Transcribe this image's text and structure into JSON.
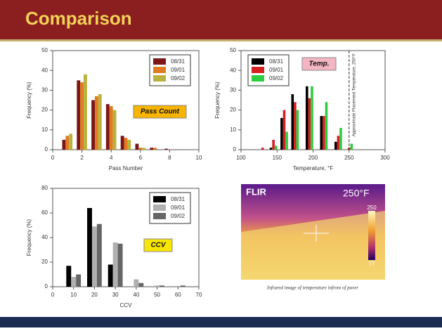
{
  "slide_title": "Comparison",
  "chart_data": [
    {
      "type": "bar",
      "annotation": "Pass Count",
      "xlabel": "Pass Number",
      "ylabel": "Frequency (%)",
      "x": [
        1,
        2,
        3,
        4,
        5,
        6,
        7,
        8
      ],
      "series": [
        {
          "name": "08/31",
          "color": "#7a1616",
          "values": [
            5,
            35,
            25,
            23,
            7,
            3,
            1,
            0.5
          ]
        },
        {
          "name": "09/01",
          "color": "#e07b22",
          "values": [
            7,
            34,
            27,
            22,
            6,
            1,
            1,
            0
          ]
        },
        {
          "name": "09/02",
          "color": "#b9b23f",
          "values": [
            8,
            38,
            28,
            20,
            5,
            1,
            0,
            0
          ]
        }
      ],
      "xlim": [
        0,
        10
      ],
      "xticks": [
        0,
        2,
        4,
        6,
        8,
        10
      ],
      "ylim": [
        0,
        50
      ],
      "yticks": [
        0,
        10,
        20,
        30,
        40,
        50
      ],
      "legend": "upper right"
    },
    {
      "type": "bar",
      "annotation": "Temp.",
      "xlabel": "Temperature, °F",
      "ylabel": "Frequency (%)",
      "x": [
        130,
        145,
        160,
        175,
        195,
        215,
        235,
        250
      ],
      "series": [
        {
          "name": "08/31",
          "color": "#000000",
          "values": [
            0,
            1,
            16,
            28,
            32,
            17,
            4,
            0
          ]
        },
        {
          "name": "09/01",
          "color": "#d42020",
          "values": [
            1,
            5,
            20,
            24,
            26,
            17,
            7,
            1
          ]
        },
        {
          "name": "09/02",
          "color": "#2ecc40",
          "values": [
            0,
            2,
            9,
            20,
            32,
            24,
            11,
            3
          ]
        }
      ],
      "reference_line": {
        "x": 250,
        "label": "Approximate Placement Temperature, 250°F"
      },
      "xlim": [
        100,
        300
      ],
      "xticks": [
        100,
        150,
        200,
        250,
        300
      ],
      "ylim": [
        0,
        50
      ],
      "yticks": [
        0,
        10,
        20,
        30,
        40,
        50
      ],
      "legend": "upper left"
    },
    {
      "type": "bar",
      "annotation": "CCV",
      "xlabel": "CCV",
      "ylabel": "Frequency (%)",
      "x": [
        10,
        20,
        30,
        40,
        50,
        60
      ],
      "series": [
        {
          "name": "08/31",
          "color": "#000000",
          "values": [
            17,
            64,
            18,
            0,
            0,
            0
          ]
        },
        {
          "name": "09/01",
          "color": "#b0b0b0",
          "values": [
            8,
            49,
            36,
            6,
            1,
            0
          ]
        },
        {
          "name": "09/02",
          "color": "#666666",
          "values": [
            10,
            51,
            35,
            3,
            1,
            1
          ]
        }
      ],
      "xlim": [
        0,
        70
      ],
      "xticks": [
        0,
        10,
        20,
        30,
        40,
        50,
        60,
        70
      ],
      "ylim": [
        0,
        80
      ],
      "yticks": [
        0,
        20,
        40,
        60,
        80
      ],
      "legend": "upper right"
    }
  ],
  "image": {
    "logo": "FLIR",
    "reading": "250°F",
    "scale_max": "250",
    "scale_min": "77",
    "caption": "Infrared image of temperature infront of paver"
  }
}
